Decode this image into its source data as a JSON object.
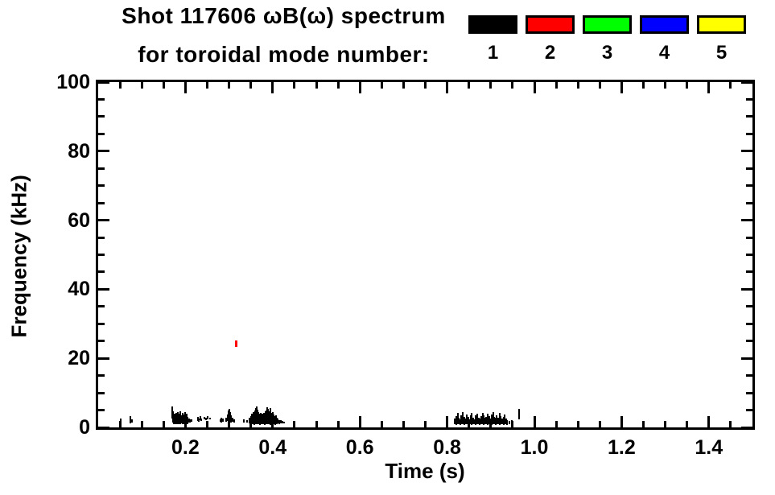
{
  "header": {
    "title": "Shot 117606 ωB(ω) spectrum",
    "subtitle": "for toroidal mode number:"
  },
  "chart_data": {
    "type": "scatter",
    "title": "Shot 117606 ωB(ω) spectrum",
    "subtitle": "for toroidal mode number:",
    "xlabel": "Time (s)",
    "ylabel": "Frequency (kHz)",
    "xlim": [
      0,
      1.5
    ],
    "ylim": [
      0,
      100
    ],
    "grid": false,
    "background": "#ffffff",
    "frame_color": "#000000",
    "x_major_ticks": [
      0.2,
      0.4,
      0.6,
      0.8,
      1.0,
      1.2,
      1.4
    ],
    "x_tick_labels": [
      "0.2",
      "0.4",
      "0.6",
      "0.8",
      "1.0",
      "1.2",
      "1.4"
    ],
    "x_minor_step": 0.05,
    "y_major_ticks": [
      0,
      20,
      40,
      60,
      80,
      100
    ],
    "y_tick_labels": [
      "0",
      "20",
      "40",
      "60",
      "80",
      "100"
    ],
    "y_minor_step": 5,
    "legend": {
      "position": "top-right",
      "items": [
        {
          "label": "1",
          "color": "#000000"
        },
        {
          "label": "2",
          "color": "#ff0000"
        },
        {
          "label": "3",
          "color": "#00ff00"
        },
        {
          "label": "4",
          "color": "#0000ff"
        },
        {
          "label": "5",
          "color": "#ffff00"
        }
      ]
    },
    "series": [
      {
        "name": "toroidal mode n=1",
        "color": "#000000",
        "marker": "vertical-dash",
        "dash_width": 2,
        "segments": [
          [
            0.052,
            1.0,
            2.6
          ],
          [
            0.074,
            1.2,
            3.2
          ],
          [
            0.078,
            1.4,
            2.4
          ],
          [
            0.169,
            2.5,
            6.0
          ],
          [
            0.171,
            1.4,
            4.6
          ],
          [
            0.173,
            1.0,
            3.4
          ],
          [
            0.175,
            1.2,
            4.0
          ],
          [
            0.177,
            0.9,
            3.3
          ],
          [
            0.179,
            1.1,
            4.3
          ],
          [
            0.181,
            1.0,
            3.6
          ],
          [
            0.183,
            1.3,
            4.5
          ],
          [
            0.185,
            0.9,
            3.2
          ],
          [
            0.187,
            1.1,
            4.0
          ],
          [
            0.189,
            1.0,
            4.6
          ],
          [
            0.191,
            1.2,
            3.5
          ],
          [
            0.193,
            0.9,
            4.2
          ],
          [
            0.195,
            1.1,
            3.1
          ],
          [
            0.197,
            1.0,
            3.8
          ],
          [
            0.199,
            1.2,
            4.4
          ],
          [
            0.201,
            0.9,
            3.3
          ],
          [
            0.203,
            1.1,
            3.9
          ],
          [
            0.205,
            1.0,
            3.0
          ],
          [
            0.208,
            1.4,
            2.6
          ],
          [
            0.211,
            1.5,
            2.4
          ],
          [
            0.214,
            1.6,
            2.3
          ],
          [
            0.228,
            1.9,
            3.0
          ],
          [
            0.231,
            1.7,
            2.6
          ],
          [
            0.234,
            2.1,
            3.3
          ],
          [
            0.237,
            1.8,
            2.5
          ],
          [
            0.244,
            2.3,
            3.1
          ],
          [
            0.247,
            2.2,
            2.9
          ],
          [
            0.251,
            2.4,
            3.2
          ],
          [
            0.256,
            2.3,
            2.8
          ],
          [
            0.28,
            1.6,
            2.4
          ],
          [
            0.283,
            1.5,
            2.7
          ],
          [
            0.286,
            1.7,
            2.5
          ],
          [
            0.294,
            1.6,
            2.9
          ],
          [
            0.297,
            1.8,
            3.8
          ],
          [
            0.299,
            2.0,
            4.8
          ],
          [
            0.301,
            1.6,
            5.4
          ],
          [
            0.303,
            1.8,
            4.4
          ],
          [
            0.305,
            1.5,
            3.4
          ],
          [
            0.308,
            1.6,
            2.7
          ],
          [
            0.311,
            1.5,
            2.3
          ],
          [
            0.334,
            1.4,
            2.4
          ],
          [
            0.341,
            1.3,
            2.2
          ],
          [
            0.346,
            1.1,
            2.8
          ],
          [
            0.35,
            1.0,
            3.2
          ],
          [
            0.352,
            1.1,
            3.9
          ],
          [
            0.354,
            0.9,
            3.4
          ],
          [
            0.356,
            1.0,
            4.4
          ],
          [
            0.358,
            0.8,
            3.8
          ],
          [
            0.36,
            1.0,
            4.9
          ],
          [
            0.362,
            0.9,
            5.6
          ],
          [
            0.364,
            1.1,
            6.0
          ],
          [
            0.366,
            0.9,
            5.2
          ],
          [
            0.368,
            1.0,
            4.5
          ],
          [
            0.37,
            0.8,
            3.9
          ],
          [
            0.372,
            1.0,
            4.2
          ],
          [
            0.374,
            0.9,
            3.6
          ],
          [
            0.376,
            1.1,
            4.0
          ],
          [
            0.378,
            0.9,
            3.3
          ],
          [
            0.38,
            1.0,
            4.3
          ],
          [
            0.382,
            0.8,
            3.7
          ],
          [
            0.384,
            1.0,
            4.6
          ],
          [
            0.386,
            0.9,
            5.0
          ],
          [
            0.388,
            1.1,
            5.8
          ],
          [
            0.39,
            0.9,
            5.3
          ],
          [
            0.392,
            1.0,
            4.7
          ],
          [
            0.394,
            0.8,
            5.5
          ],
          [
            0.396,
            1.0,
            4.1
          ],
          [
            0.398,
            0.9,
            3.6
          ],
          [
            0.4,
            1.1,
            4.4
          ],
          [
            0.402,
            0.9,
            3.8
          ],
          [
            0.404,
            1.0,
            3.3
          ],
          [
            0.406,
            0.8,
            2.9
          ],
          [
            0.408,
            1.0,
            3.5
          ],
          [
            0.41,
            0.9,
            2.8
          ],
          [
            0.412,
            1.1,
            2.5
          ],
          [
            0.415,
            1.0,
            2.2
          ],
          [
            0.418,
            1.2,
            2.0
          ],
          [
            0.422,
            1.1,
            1.8
          ],
          [
            0.426,
            1.2,
            1.7
          ],
          [
            0.818,
            0.9,
            2.6
          ],
          [
            0.821,
            0.8,
            3.3
          ],
          [
            0.824,
            1.0,
            4.1
          ],
          [
            0.827,
            0.9,
            2.9
          ],
          [
            0.83,
            0.8,
            2.4
          ],
          [
            0.833,
            1.0,
            3.5
          ],
          [
            0.836,
            0.9,
            4.4
          ],
          [
            0.839,
            0.8,
            3.1
          ],
          [
            0.842,
            1.0,
            2.6
          ],
          [
            0.845,
            0.9,
            3.7
          ],
          [
            0.848,
            0.8,
            3.0
          ],
          [
            0.851,
            1.0,
            2.4
          ],
          [
            0.854,
            0.9,
            3.4
          ],
          [
            0.857,
            0.8,
            4.2
          ],
          [
            0.86,
            1.0,
            2.8
          ],
          [
            0.863,
            0.9,
            2.3
          ],
          [
            0.866,
            0.8,
            3.6
          ],
          [
            0.869,
            1.0,
            4.0
          ],
          [
            0.872,
            0.9,
            2.9
          ],
          [
            0.875,
            0.8,
            2.5
          ],
          [
            0.878,
            1.0,
            3.2
          ],
          [
            0.881,
            0.9,
            4.3
          ],
          [
            0.884,
            0.8,
            3.5
          ],
          [
            0.887,
            1.0,
            2.7
          ],
          [
            0.89,
            0.9,
            3.0
          ],
          [
            0.893,
            0.8,
            3.9
          ],
          [
            0.896,
            1.0,
            3.3
          ],
          [
            0.899,
            0.9,
            2.6
          ],
          [
            0.902,
            0.8,
            3.8
          ],
          [
            0.905,
            1.0,
            4.5
          ],
          [
            0.908,
            0.9,
            3.1
          ],
          [
            0.911,
            0.8,
            2.8
          ],
          [
            0.914,
            1.0,
            3.4
          ],
          [
            0.917,
            0.9,
            2.9
          ],
          [
            0.92,
            0.8,
            4.1
          ],
          [
            0.923,
            1.0,
            3.2
          ],
          [
            0.926,
            0.9,
            2.6
          ],
          [
            0.929,
            0.8,
            3.0
          ],
          [
            0.932,
            1.0,
            3.7
          ],
          [
            0.935,
            0.9,
            2.5
          ],
          [
            0.938,
            0.8,
            2.2
          ],
          [
            0.943,
            1.0,
            1.9
          ],
          [
            0.949,
            1.1,
            2.1
          ],
          [
            0.965,
            2.3,
            5.3
          ]
        ]
      },
      {
        "name": "toroidal mode n=2",
        "color": "#ff0000",
        "marker": "vertical-dash",
        "dash_width": 3,
        "segments": [
          [
            0.3155,
            23.3,
            25.2
          ]
        ]
      }
    ]
  }
}
